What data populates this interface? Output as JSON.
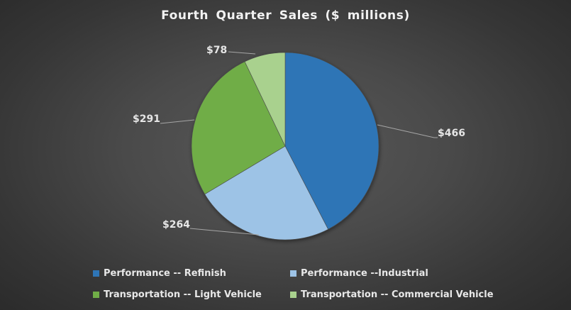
{
  "chart_data": {
    "type": "pie",
    "title": "Fourth Quarter Sales ($ millions)",
    "categories": [
      "Performance -- Refinish",
      "Performance --Industrial",
      "Transportation -- Light Vehicle",
      "Transportation -- Commercial Vehicle"
    ],
    "values": [
      466,
      264,
      291,
      78
    ],
    "data_labels": [
      "$466",
      "$264",
      "$291",
      "$78"
    ],
    "colors": [
      "#2e75b6",
      "#9dc3e6",
      "#70ad47",
      "#a9d18e"
    ],
    "start_angle": "12 o'clock, clockwise",
    "legend_position": "bottom"
  },
  "title": "Fourth Quarter Sales ($ millions)",
  "labels": {
    "refinish": "$466",
    "industrial": "$264",
    "light_vehicle": "$291",
    "commercial_vehicle": "$78"
  },
  "legend": [
    {
      "label": "Performance -- Refinish",
      "color": "#2e75b6"
    },
    {
      "label": "Performance --Industrial",
      "color": "#9dc3e6"
    },
    {
      "label": "Transportation -- Light Vehicle",
      "color": "#70ad47"
    },
    {
      "label": "Transportation -- Commercial Vehicle",
      "color": "#a9d18e"
    }
  ]
}
